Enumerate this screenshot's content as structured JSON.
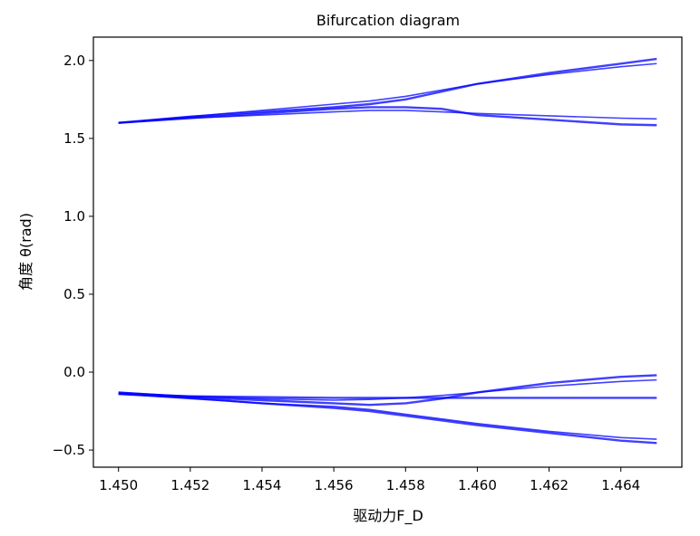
{
  "chart_data": {
    "type": "line",
    "title": "Bifurcation diagram",
    "xlabel": "驱动力F_D",
    "ylabel": "角度 θ(rad)",
    "xlim": [
      1.4493,
      1.4657
    ],
    "ylim": [
      -0.61,
      2.15
    ],
    "xticks": [
      "1.450",
      "1.452",
      "1.454",
      "1.456",
      "1.458",
      "1.460",
      "1.462",
      "1.464"
    ],
    "yticks": [
      "−0.5",
      "0.0",
      "0.5",
      "1.0",
      "1.5",
      "2.0"
    ],
    "grid": false,
    "line_color": "#0000ff",
    "x": [
      1.45,
      1.452,
      1.454,
      1.456,
      1.457,
      1.458,
      1.459,
      1.46,
      1.462,
      1.464,
      1.465
    ],
    "series": [
      {
        "values": [
          1.6,
          1.64,
          1.67,
          1.7,
          1.72,
          1.75,
          1.8,
          1.85,
          1.92,
          1.98,
          2.01
        ]
      },
      {
        "values": [
          1.6,
          1.64,
          1.68,
          1.72,
          1.74,
          1.77,
          1.81,
          1.85,
          1.91,
          1.96,
          1.98
        ]
      },
      {
        "values": [
          1.6,
          1.63,
          1.66,
          1.69,
          1.7,
          1.7,
          1.69,
          1.65,
          1.62,
          1.59,
          1.585
        ]
      },
      {
        "values": [
          1.6,
          1.63,
          1.65,
          1.67,
          1.68,
          1.68,
          1.67,
          1.66,
          1.645,
          1.63,
          1.625
        ]
      },
      {
        "values": [
          -0.13,
          -0.16,
          -0.18,
          -0.2,
          -0.21,
          -0.2,
          -0.17,
          -0.13,
          -0.07,
          -0.03,
          -0.02
        ]
      },
      {
        "values": [
          -0.13,
          -0.155,
          -0.17,
          -0.18,
          -0.175,
          -0.165,
          -0.15,
          -0.13,
          -0.09,
          -0.06,
          -0.05
        ]
      },
      {
        "values": [
          -0.14,
          -0.165,
          -0.2,
          -0.23,
          -0.25,
          -0.28,
          -0.31,
          -0.34,
          -0.39,
          -0.44,
          -0.455
        ]
      },
      {
        "values": [
          -0.14,
          -0.17,
          -0.2,
          -0.22,
          -0.24,
          -0.27,
          -0.3,
          -0.33,
          -0.38,
          -0.42,
          -0.43
        ]
      },
      {
        "values": [
          -0.14,
          -0.155,
          -0.16,
          -0.165,
          -0.165,
          -0.165,
          -0.165,
          -0.165,
          -0.165,
          -0.165,
          -0.165
        ]
      }
    ]
  }
}
